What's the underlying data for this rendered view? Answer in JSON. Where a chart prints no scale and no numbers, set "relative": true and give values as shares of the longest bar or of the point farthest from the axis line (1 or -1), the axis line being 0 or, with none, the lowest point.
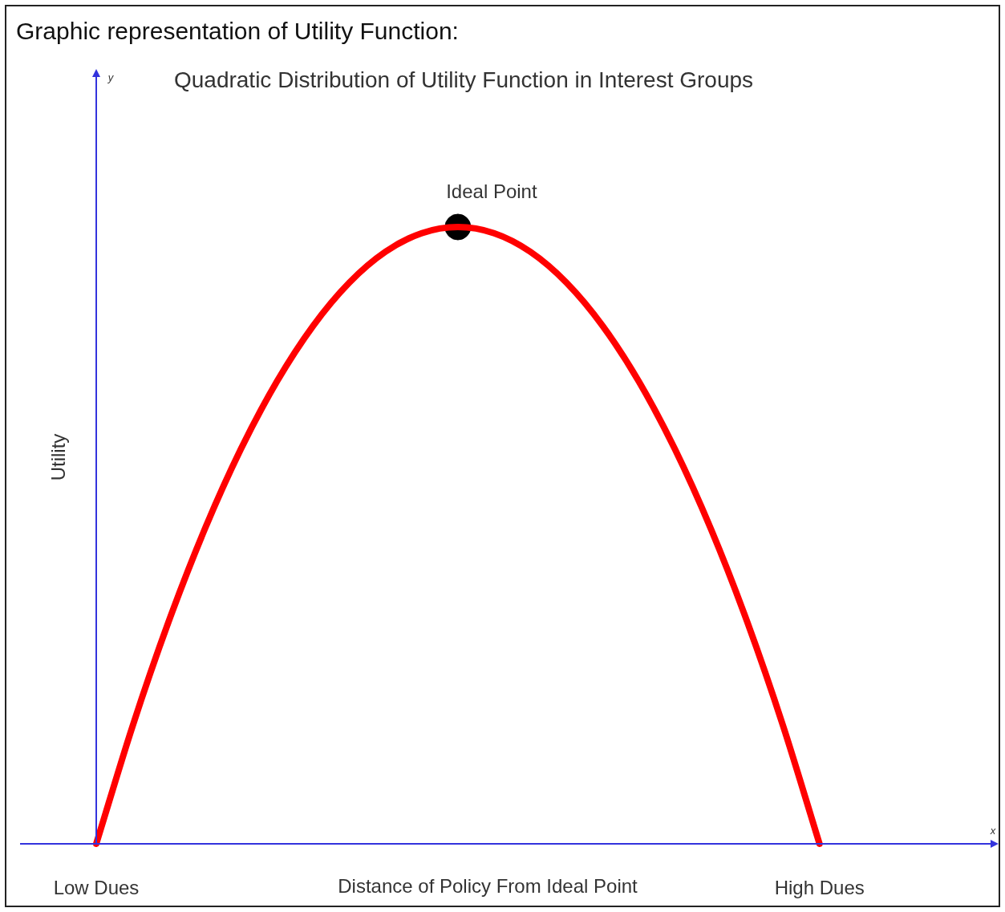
{
  "chart_data": {
    "type": "line",
    "title": "Graphic representation of Utility Function:",
    "subtitle": "Quadratic Distribution of Utility Function in Interest Groups",
    "xlabel": "Distance of Policy From Ideal Point",
    "ylabel": "Utility",
    "relative": true,
    "grid": false,
    "legend": false,
    "categories": [
      "Low Dues",
      null,
      null,
      null,
      null,
      null,
      null,
      null,
      null,
      null,
      null,
      null,
      null,
      null,
      null,
      null,
      null,
      null,
      null,
      null,
      "High Dues",
      null,
      null,
      null
    ],
    "annotations": [
      {
        "text": "Ideal Point",
        "y": 1
      },
      "y",
      "x"
    ],
    "series": [
      {
        "type": "line",
        "color": "#ff0000",
        "values": [
          0,
          0.19,
          0.36,
          0.51,
          0.64,
          0.75,
          0.84,
          0.91,
          0.96,
          0.99,
          1,
          0.99,
          0.96,
          0.91,
          0.84,
          0.75,
          0.64,
          0.51,
          0.36,
          0.19,
          0,
          null,
          null,
          null
        ]
      },
      {
        "type": "scatter",
        "marker": "circle",
        "color": "#000000",
        "values": [
          null,
          null,
          null,
          null,
          null,
          null,
          null,
          null,
          null,
          null,
          1,
          null,
          null,
          null,
          null,
          null,
          null,
          null,
          null,
          null,
          null,
          null,
          null,
          null
        ]
      }
    ]
  }
}
